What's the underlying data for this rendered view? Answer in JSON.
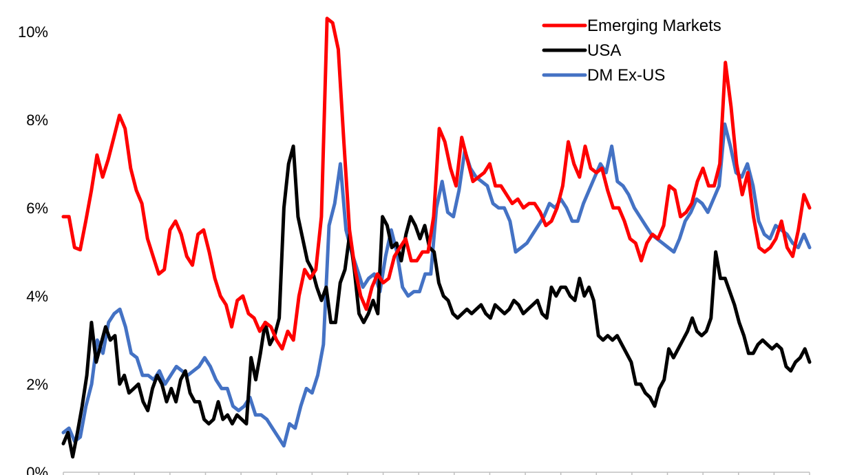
{
  "chart_data": {
    "type": "line",
    "title": "",
    "xlabel": "",
    "ylabel": "",
    "y_tick_labels": [
      "0%",
      "2%",
      "4%",
      "6%",
      "8%",
      "10%"
    ],
    "ylim": [
      0,
      10
    ],
    "grid": false,
    "legend_position": "top-right",
    "series": [
      {
        "name": "Emerging Markets",
        "color": "#ff0000",
        "values": [
          5.8,
          5.8,
          5.1,
          5.05,
          5.7,
          6.4,
          7.2,
          6.7,
          7.1,
          7.6,
          8.1,
          7.8,
          6.9,
          6.4,
          6.1,
          5.3,
          4.9,
          4.5,
          4.6,
          5.5,
          5.7,
          5.4,
          4.9,
          4.7,
          5.4,
          5.5,
          5.0,
          4.4,
          4.0,
          3.8,
          3.3,
          3.9,
          4.0,
          3.6,
          3.5,
          3.2,
          3.4,
          3.3,
          3.0,
          2.8,
          3.2,
          3.0,
          4.0,
          4.6,
          4.4,
          4.6,
          5.8,
          10.3,
          10.2,
          9.6,
          7.5,
          5.5,
          4.6,
          4.0,
          3.7,
          4.2,
          4.5,
          4.3,
          4.4,
          4.9,
          5.1,
          5.3,
          4.8,
          4.8,
          5.0,
          5.0,
          5.8,
          7.8,
          7.5,
          6.9,
          6.5,
          7.6,
          7.1,
          6.6,
          6.7,
          6.8,
          7.0,
          6.5,
          6.5,
          6.3,
          6.1,
          6.2,
          6.0,
          6.1,
          6.1,
          5.9,
          5.6,
          5.7,
          6.0,
          6.5,
          7.5,
          7.0,
          6.7,
          7.4,
          6.9,
          6.8,
          6.9,
          6.4,
          6.0,
          6.0,
          5.7,
          5.3,
          5.2,
          4.8,
          5.2,
          5.4,
          5.3,
          5.6,
          6.5,
          6.4,
          5.8,
          5.9,
          6.1,
          6.6,
          6.9,
          6.5,
          6.5,
          7.0,
          9.3,
          8.3,
          7.0,
          6.3,
          6.8,
          5.8,
          5.1,
          5.0,
          5.1,
          5.3,
          5.7,
          5.1,
          4.9,
          5.5,
          6.3,
          6.0
        ]
      },
      {
        "name": "USA",
        "color": "#000000",
        "values": [
          0.65,
          0.9,
          0.35,
          0.9,
          1.5,
          2.2,
          3.4,
          2.5,
          2.9,
          3.3,
          3.0,
          3.1,
          2.0,
          2.2,
          1.8,
          1.9,
          2.0,
          1.6,
          1.4,
          1.9,
          2.2,
          2.0,
          1.6,
          1.9,
          1.6,
          2.1,
          2.3,
          1.8,
          1.6,
          1.6,
          1.2,
          1.1,
          1.2,
          1.6,
          1.2,
          1.3,
          1.1,
          1.3,
          1.2,
          1.1,
          2.6,
          2.1,
          2.7,
          3.4,
          2.9,
          3.1,
          3.5,
          6.0,
          7.0,
          7.4,
          5.8,
          5.3,
          4.8,
          4.6,
          4.2,
          3.9,
          4.2,
          3.4,
          3.4,
          4.3,
          4.6,
          5.4,
          4.6,
          3.6,
          3.4,
          3.6,
          3.9,
          3.6,
          5.8,
          5.6,
          5.1,
          5.2,
          4.8,
          5.4,
          5.8,
          5.6,
          5.3,
          5.6,
          5.1,
          5.0,
          4.3,
          4.0,
          3.9,
          3.6,
          3.5,
          3.6,
          3.7,
          3.6,
          3.7,
          3.8,
          3.6,
          3.5,
          3.8,
          3.7,
          3.6,
          3.7,
          3.9,
          3.8,
          3.6,
          3.7,
          3.8,
          3.9,
          3.6,
          3.5,
          4.2,
          4.0,
          4.2,
          4.2,
          4.0,
          3.9,
          4.4,
          4.0,
          4.2,
          3.9,
          3.1,
          3.0,
          3.1,
          3.0,
          3.1,
          2.9,
          2.7,
          2.5,
          2.0,
          2.0,
          1.8,
          1.7,
          1.5,
          1.9,
          2.1,
          2.8,
          2.6,
          2.8,
          3.0,
          3.2,
          3.5,
          3.2,
          3.1,
          3.2,
          3.5,
          5.0,
          4.4,
          4.4,
          4.1,
          3.8,
          3.4,
          3.1,
          2.7,
          2.7,
          2.9,
          3.0,
          2.9,
          2.8,
          2.9,
          2.8,
          2.4,
          2.3,
          2.5,
          2.6,
          2.8,
          2.5
        ]
      },
      {
        "name": "DM Ex-US",
        "color": "#4472c4",
        "values": [
          0.9,
          1.0,
          0.7,
          0.8,
          1.5,
          2.0,
          3.0,
          2.7,
          3.4,
          3.6,
          3.7,
          3.3,
          2.7,
          2.6,
          2.2,
          2.2,
          2.1,
          2.3,
          2.0,
          2.2,
          2.4,
          2.3,
          2.2,
          2.3,
          2.4,
          2.6,
          2.4,
          2.1,
          1.9,
          1.9,
          1.5,
          1.4,
          1.5,
          1.7,
          1.3,
          1.3,
          1.2,
          1.0,
          0.8,
          0.6,
          1.1,
          1.0,
          1.5,
          1.9,
          1.8,
          2.2,
          2.9,
          5.6,
          6.1,
          7.0,
          5.5,
          5.0,
          4.6,
          4.2,
          4.4,
          4.5,
          4.1,
          4.9,
          5.5,
          5.0,
          4.2,
          4.0,
          4.1,
          4.1,
          4.5,
          4.5,
          6.0,
          6.6,
          5.9,
          5.8,
          6.4,
          7.3,
          6.9,
          6.7,
          6.6,
          6.5,
          6.1,
          6.0,
          6.0,
          5.7,
          5.0,
          5.1,
          5.2,
          5.4,
          5.6,
          5.8,
          6.1,
          6.0,
          6.2,
          6.0,
          5.7,
          5.7,
          6.1,
          6.4,
          6.7,
          7.0,
          6.8,
          7.4,
          6.6,
          6.5,
          6.3,
          6.0,
          5.8,
          5.6,
          5.4,
          5.3,
          5.2,
          5.1,
          5.0,
          5.3,
          5.7,
          5.9,
          6.2,
          6.1,
          5.9,
          6.2,
          6.5,
          7.9,
          7.4,
          6.8,
          6.7,
          7.0,
          6.5,
          5.7,
          5.4,
          5.3,
          5.6,
          5.5,
          5.4,
          5.2,
          5.1,
          5.4,
          5.1
        ]
      }
    ]
  }
}
